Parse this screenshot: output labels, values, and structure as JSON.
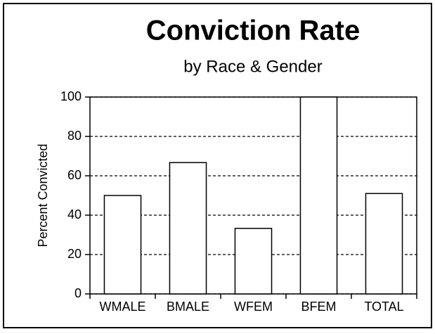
{
  "chart_data": {
    "type": "bar",
    "title": "Conviction Rate",
    "subtitle": "by Race & Gender",
    "y_label": "Percent Convicted",
    "categories": [
      "WMALE",
      "BMALE",
      "WFEM",
      "BFEM",
      "TOTAL"
    ],
    "values": [
      50,
      66.7,
      33.3,
      100,
      51
    ],
    "color": "#ffffff",
    "ylim": [
      0,
      100
    ],
    "yticks": [
      0,
      20,
      40,
      60,
      80,
      100
    ],
    "grid": true
  }
}
